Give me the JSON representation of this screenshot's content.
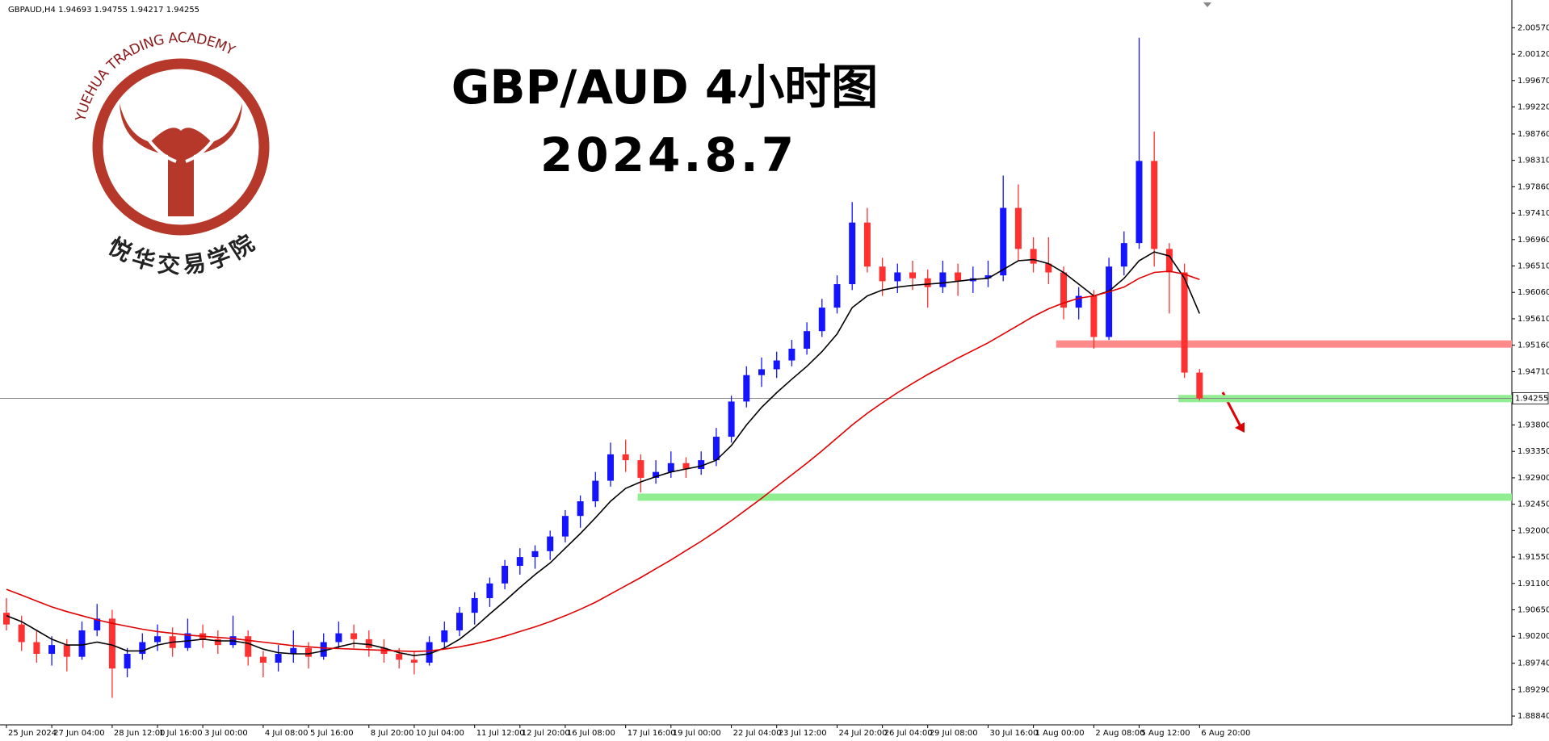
{
  "chart_data": {
    "type": "candlestick",
    "title": "GBP/AUD 4小时图",
    "subtitle": "2024.8.7",
    "symbol_info": "GBPAUD,H4  1.94693 1.94755 1.94217 1.94255",
    "up_color": "#1414ff",
    "down_color": "#ff3030",
    "title_color": "#a01ef0",
    "categories": [
      "25 Jun 2024",
      null,
      null,
      "27 Jun 04:00",
      null,
      null,
      null,
      "28 Jun 12:00",
      null,
      null,
      "1 Jul 16:00",
      null,
      null,
      "3 Jul 00:00",
      null,
      null,
      null,
      "4 Jul 08:00",
      null,
      null,
      "5 Jul 16:00",
      null,
      null,
      null,
      "8 Jul 20:00",
      null,
      null,
      "10 Jul 04:00",
      null,
      null,
      null,
      "11 Jul 12:00",
      null,
      null,
      "12 Jul 20:00",
      null,
      null,
      "16 Jul 08:00",
      null,
      null,
      null,
      "17 Jul 16:00",
      null,
      null,
      "19 Jul 00:00",
      null,
      null,
      null,
      "22 Jul 04:00",
      null,
      null,
      "23 Jul 12:00",
      null,
      null,
      null,
      "24 Jul 20:00",
      null,
      null,
      "26 Jul 04:00",
      null,
      null,
      "29 Jul 08:00",
      null,
      null,
      null,
      "30 Jul 16:00",
      null,
      null,
      "1 Aug 00:00",
      null,
      null,
      null,
      "2 Aug 08:00",
      null,
      null,
      "5 Aug 12:00",
      null,
      null,
      null,
      "6 Aug 20:00"
    ],
    "open": [
      1.906,
      1.904,
      1.901,
      1.899,
      1.9005,
      1.8985,
      1.903,
      1.905,
      1.8965,
      1.899,
      1.901,
      1.902,
      1.9,
      1.9025,
      1.9015,
      1.9005,
      1.902,
      1.8985,
      1.8975,
      1.899,
      1.9,
      1.8985,
      1.901,
      1.9025,
      1.9015,
      1.9,
      1.899,
      1.898,
      1.8975,
      1.901,
      1.903,
      1.906,
      1.9085,
      1.911,
      1.914,
      1.9155,
      1.9165,
      1.919,
      1.9225,
      1.925,
      1.9285,
      1.933,
      1.932,
      1.929,
      1.93,
      1.9315,
      1.9305,
      1.932,
      1.936,
      1.942,
      1.9465,
      1.9475,
      1.949,
      1.951,
      1.954,
      1.958,
      1.962,
      1.9725,
      1.965,
      1.9625,
      1.964,
      1.963,
      1.9615,
      1.964,
      1.9625,
      1.963,
      1.9635,
      1.975,
      1.968,
      1.9655,
      1.964,
      1.958,
      1.96,
      1.953,
      1.965,
      1.969,
      1.983,
      1.968,
      1.964,
      1.94693
    ],
    "high": [
      1.9085,
      1.9055,
      1.903,
      1.902,
      1.9015,
      1.9045,
      1.9075,
      1.9065,
      1.9,
      1.9025,
      1.904,
      1.9035,
      1.905,
      1.904,
      1.903,
      1.9055,
      1.903,
      1.8995,
      1.9005,
      1.903,
      1.901,
      1.9025,
      1.9045,
      1.904,
      1.903,
      1.9015,
      1.9,
      1.8995,
      1.902,
      1.9045,
      1.907,
      1.9095,
      1.912,
      1.915,
      1.917,
      1.9175,
      1.92,
      1.9235,
      1.926,
      1.93,
      1.935,
      1.9355,
      1.933,
      1.932,
      1.9335,
      1.9325,
      1.9335,
      1.9375,
      1.943,
      1.948,
      1.9495,
      1.9505,
      1.9525,
      1.9555,
      1.9595,
      1.9635,
      1.976,
      1.975,
      1.9665,
      1.9655,
      1.966,
      1.9645,
      1.966,
      1.9655,
      1.965,
      1.966,
      1.9805,
      1.979,
      1.97,
      1.97,
      1.965,
      1.9615,
      1.961,
      1.9665,
      1.971,
      2.004,
      1.988,
      1.969,
      1.9655,
      1.94755
    ],
    "low": [
      1.903,
      1.8995,
      1.8975,
      1.897,
      1.896,
      1.898,
      1.902,
      1.8915,
      1.895,
      1.898,
      1.8995,
      1.8985,
      1.8995,
      1.9,
      1.899,
      1.9,
      1.897,
      1.895,
      1.896,
      1.8975,
      1.8965,
      1.898,
      1.9,
      1.9,
      1.8985,
      1.8975,
      1.8965,
      1.8955,
      1.897,
      1.9,
      1.902,
      1.904,
      1.907,
      1.91,
      1.9125,
      1.9135,
      1.915,
      1.918,
      1.9205,
      1.924,
      1.9275,
      1.93,
      1.9265,
      1.928,
      1.929,
      1.929,
      1.9295,
      1.931,
      1.935,
      1.941,
      1.9445,
      1.946,
      1.948,
      1.95,
      1.953,
      1.957,
      1.961,
      1.964,
      1.96,
      1.9605,
      1.961,
      1.958,
      1.9605,
      1.96,
      1.9605,
      1.9615,
      1.9625,
      1.966,
      1.964,
      1.962,
      1.956,
      1.956,
      1.951,
      1.9525,
      1.9635,
      1.968,
      1.965,
      1.957,
      1.946,
      1.94217
    ],
    "close": [
      1.904,
      1.901,
      1.899,
      1.9005,
      1.8985,
      1.903,
      1.905,
      1.8965,
      1.899,
      1.901,
      1.902,
      1.9,
      1.9025,
      1.9015,
      1.9005,
      1.902,
      1.8985,
      1.8975,
      1.899,
      1.9,
      1.8985,
      1.901,
      1.9025,
      1.9015,
      1.9,
      1.899,
      1.898,
      1.8975,
      1.901,
      1.903,
      1.906,
      1.9085,
      1.911,
      1.914,
      1.9155,
      1.9165,
      1.919,
      1.9225,
      1.925,
      1.9285,
      1.933,
      1.932,
      1.929,
      1.93,
      1.9315,
      1.9305,
      1.932,
      1.936,
      1.942,
      1.9465,
      1.9475,
      1.949,
      1.951,
      1.954,
      1.958,
      1.962,
      1.9725,
      1.965,
      1.9625,
      1.964,
      1.963,
      1.9615,
      1.964,
      1.9625,
      1.963,
      1.9635,
      1.975,
      1.968,
      1.9655,
      1.964,
      1.958,
      1.96,
      1.953,
      1.965,
      1.969,
      1.983,
      1.968,
      1.964,
      1.94693,
      1.94255
    ],
    "moving_averages": [
      {
        "color": "#000000",
        "values": [
          1.9055,
          1.9045,
          1.903,
          1.9015,
          1.9005,
          1.9005,
          1.901,
          1.9005,
          1.8995,
          1.8995,
          1.9005,
          1.901,
          1.9012,
          1.9015,
          1.9012,
          1.9012,
          1.9008,
          1.8998,
          1.8992,
          1.899,
          1.899,
          1.8995,
          1.9002,
          1.9008,
          1.9006,
          1.9,
          1.8992,
          1.8987,
          1.899,
          1.9,
          1.9015,
          1.9035,
          1.9058,
          1.908,
          1.9103,
          1.9125,
          1.9145,
          1.917,
          1.9195,
          1.9222,
          1.925,
          1.9272,
          1.9283,
          1.9292,
          1.93,
          1.9305,
          1.931,
          1.932,
          1.9345,
          1.938,
          1.941,
          1.9435,
          1.9458,
          1.948,
          1.9505,
          1.9535,
          1.958,
          1.96,
          1.961,
          1.9615,
          1.9618,
          1.962,
          1.9622,
          1.9625,
          1.9628,
          1.963,
          1.9645,
          1.966,
          1.9662,
          1.9655,
          1.964,
          1.962,
          1.96,
          1.9608,
          1.963,
          1.966,
          1.9675,
          1.9668,
          1.963,
          1.957
        ]
      },
      {
        "color": "#e00000",
        "values": [
          1.91,
          1.909,
          1.908,
          1.907,
          1.9062,
          1.9055,
          1.9048,
          1.9042,
          1.9037,
          1.9032,
          1.9028,
          1.9025,
          1.9022,
          1.902,
          1.9018,
          1.9016,
          1.9013,
          1.901,
          1.9007,
          1.9004,
          1.9002,
          1.9,
          1.8999,
          1.8998,
          1.8997,
          1.8996,
          1.8995,
          1.8994,
          1.8995,
          1.8998,
          1.9002,
          1.9007,
          1.9013,
          1.902,
          1.9028,
          1.9036,
          1.9045,
          1.9055,
          1.9066,
          1.9078,
          1.9092,
          1.9106,
          1.912,
          1.9135,
          1.915,
          1.9166,
          1.9182,
          1.9199,
          1.9217,
          1.9236,
          1.9255,
          1.9275,
          1.9295,
          1.9315,
          1.9336,
          1.9358,
          1.938,
          1.94,
          1.9418,
          1.9435,
          1.9451,
          1.9466,
          1.948,
          1.9494,
          1.9507,
          1.952,
          1.9535,
          1.955,
          1.9565,
          1.9578,
          1.9588,
          1.9596,
          1.96,
          1.9607,
          1.9615,
          1.963,
          1.964,
          1.9642,
          1.9637,
          1.9628
        ]
      }
    ],
    "levels": [
      {
        "value": 1.9518,
        "color": "#ff8a8a"
      },
      {
        "value": 1.9425,
        "color": "#90ee90"
      },
      {
        "value": 1.9257,
        "color": "#90ee90"
      }
    ],
    "last_price": {
      "value": 1.94255,
      "label": "1.94255"
    },
    "ylim": [
      1.8869,
      2.0096
    ],
    "yticks": [
      {
        "value": 2.0057,
        "label": "2.00570"
      },
      {
        "value": 2.0012,
        "label": "2.00120"
      },
      {
        "value": 1.9967,
        "label": "1.99670"
      },
      {
        "value": 1.9922,
        "label": "1.99220"
      },
      {
        "value": 1.9876,
        "label": "1.98760"
      },
      {
        "value": 1.9831,
        "label": "1.98310"
      },
      {
        "value": 1.9786,
        "label": "1.97860"
      },
      {
        "value": 1.9741,
        "label": "1.97410"
      },
      {
        "value": 1.9696,
        "label": "1.96960"
      },
      {
        "value": 1.9651,
        "label": "1.96510"
      },
      {
        "value": 1.9606,
        "label": "1.96060"
      },
      {
        "value": 1.9561,
        "label": "1.95610"
      },
      {
        "value": 1.9516,
        "label": "1.95160"
      },
      {
        "value": 1.9471,
        "label": "1.94710"
      },
      {
        "value": 1.938,
        "label": "1.93800"
      },
      {
        "value": 1.9335,
        "label": "1.93350"
      },
      {
        "value": 1.929,
        "label": "1.92900"
      },
      {
        "value": 1.9245,
        "label": "1.92450"
      },
      {
        "value": 1.92,
        "label": "1.92000"
      },
      {
        "value": 1.9155,
        "label": "1.91550"
      },
      {
        "value": 1.911,
        "label": "1.91100"
      },
      {
        "value": 1.9065,
        "label": "1.90650"
      },
      {
        "value": 1.902,
        "label": "1.90200"
      },
      {
        "value": 1.8974,
        "label": "1.89740"
      },
      {
        "value": 1.8929,
        "label": "1.89290"
      },
      {
        "value": 1.8884,
        "label": "1.88840"
      }
    ]
  },
  "logo": {
    "name_en": "YUEHUA TRADING ACADEMY",
    "name_cn": "悦华交易学院"
  }
}
